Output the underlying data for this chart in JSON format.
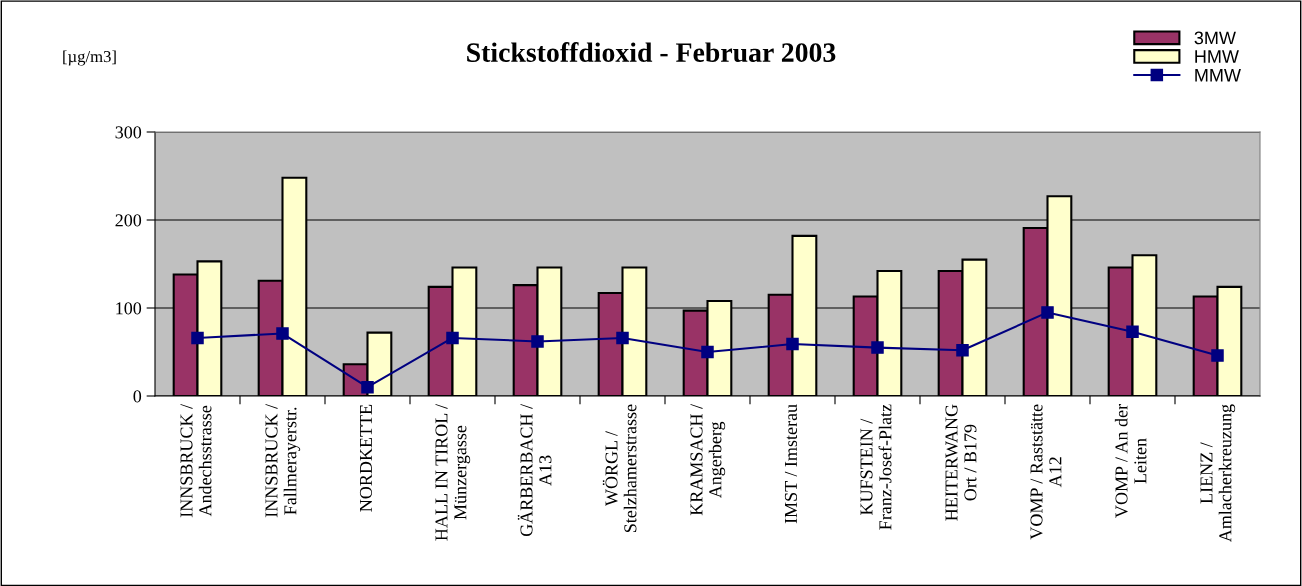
{
  "chart_data": {
    "type": "bar",
    "title": "Stickstoffdioxid - Februar 2003",
    "ylabel": "[µg/m3]",
    "categories": [
      "INNSBRUCK /\nAndechsstrasse",
      "INNSBRUCK /\nFallmerayerstr.",
      "NORDKETTE",
      "HALL IN TIROL /\nMünzergasse",
      "GÄRBERBACH /\nA13",
      "WÖRGL /\nStelzhamerstrasse",
      "KRAMSACH /\nAngerberg",
      "IMST / Imsterau",
      "KUFSTEIN /\nFranz-Josef-Platz",
      "HEITERWANG\nOrt / B179",
      "VOMP / Raststätte\nA12",
      "VOMP / An der\nLeiten",
      "LIENZ /\nAmlacherkreuzung"
    ],
    "series": [
      {
        "name": "3MW",
        "color": "#993366",
        "values": [
          138,
          131,
          36,
          124,
          126,
          117,
          97,
          115,
          113,
          142,
          191,
          146,
          113
        ]
      },
      {
        "name": "HMW",
        "color": "#ffffcc",
        "values": [
          153,
          248,
          72,
          146,
          146,
          146,
          108,
          182,
          142,
          155,
          227,
          160,
          124
        ]
      },
      {
        "name": "MMW",
        "type": "line",
        "color": "#000080",
        "marker": "square",
        "values": [
          66,
          71,
          10,
          66,
          62,
          66,
          50,
          59,
          55,
          52,
          95,
          73,
          46
        ]
      }
    ],
    "ylim": [
      0,
      300
    ],
    "yticks": [
      0,
      100,
      200,
      300
    ],
    "grid": "y",
    "legend": "top right"
  }
}
